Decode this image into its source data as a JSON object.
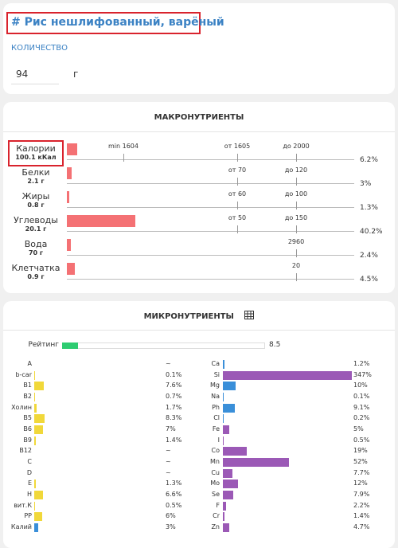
{
  "header": {
    "title": "# Рис нешлифованный, варёный"
  },
  "quantity": {
    "label": "КОЛИЧЕСТВО",
    "value": "94",
    "unit": "г"
  },
  "macro": {
    "title": "МАКРОНУТРИЕНТЫ",
    "color": "#f47174",
    "rows": [
      {
        "name": "Калории",
        "amount": "100.1 кКал",
        "value": 6.2,
        "value_label": "6.2%",
        "min": "min 1604",
        "from": "от 1605",
        "to": "до 2000"
      },
      {
        "name": "Белки",
        "amount": "2.1 г",
        "value": 3,
        "value_label": "3%",
        "from": "от 70",
        "to": "до 120"
      },
      {
        "name": "Жиры",
        "amount": "0.8 г",
        "value": 1.3,
        "value_label": "1.3%",
        "from": "от 60",
        "to": "до 100"
      },
      {
        "name": "Углеводы",
        "amount": "20.1 г",
        "value": 40.2,
        "value_label": "40.2%",
        "from": "от 50",
        "to": "до 150"
      },
      {
        "name": "Вода",
        "amount": "70 г",
        "value": 2.4,
        "value_label": "2.4%",
        "to": "2960"
      },
      {
        "name": "Клетчатка",
        "amount": "0.9 г",
        "value": 4.5,
        "value_label": "4.5%",
        "to": "20"
      }
    ]
  },
  "micro": {
    "title": "МИКРОНУТРИЕНТЫ",
    "rating": {
      "label": "Рейтинг",
      "value": 8.5,
      "color": "#2ecc71"
    },
    "left": [
      {
        "name": "A",
        "value": null,
        "value_label": "~",
        "color": "#f1d83a"
      },
      {
        "name": "b-car",
        "value": 0.1,
        "value_label": "0.1%",
        "color": "#f1d83a"
      },
      {
        "name": "B1",
        "value": 7.6,
        "value_label": "7.6%",
        "color": "#f1d83a"
      },
      {
        "name": "B2",
        "value": 0.7,
        "value_label": "0.7%",
        "color": "#f1d83a"
      },
      {
        "name": "Холин",
        "value": 1.7,
        "value_label": "1.7%",
        "color": "#f1d83a"
      },
      {
        "name": "B5",
        "value": 8.3,
        "value_label": "8.3%",
        "color": "#f1d83a"
      },
      {
        "name": "B6",
        "value": 7,
        "value_label": "7%",
        "color": "#f1d83a"
      },
      {
        "name": "B9",
        "value": 1.4,
        "value_label": "1.4%",
        "color": "#f1d83a"
      },
      {
        "name": "B12",
        "value": null,
        "value_label": "~",
        "color": "#f1d83a"
      },
      {
        "name": "C",
        "value": null,
        "value_label": "~",
        "color": "#f1d83a"
      },
      {
        "name": "D",
        "value": null,
        "value_label": "~",
        "color": "#f1d83a"
      },
      {
        "name": "E",
        "value": 1.3,
        "value_label": "1.3%",
        "color": "#f1d83a"
      },
      {
        "name": "H",
        "value": 6.6,
        "value_label": "6.6%",
        "color": "#f1d83a"
      },
      {
        "name": "вит.К",
        "value": 0.5,
        "value_label": "0.5%",
        "color": "#f1d83a"
      },
      {
        "name": "PP",
        "value": 6,
        "value_label": "6%",
        "color": "#f1d83a"
      },
      {
        "name": "Калий",
        "value": 3,
        "value_label": "3%",
        "color": "#3a8fd9"
      }
    ],
    "right": [
      {
        "name": "Ca",
        "value": 1.2,
        "value_label": "1.2%",
        "color": "#3a8fd9"
      },
      {
        "name": "Si",
        "value": 347,
        "value_label": "347%",
        "color": "#9b59b6"
      },
      {
        "name": "Mg",
        "value": 10,
        "value_label": "10%",
        "color": "#3a8fd9"
      },
      {
        "name": "Na",
        "value": 0.1,
        "value_label": "0.1%",
        "color": "#3a8fd9"
      },
      {
        "name": "Ph",
        "value": 9.1,
        "value_label": "9.1%",
        "color": "#3a8fd9"
      },
      {
        "name": "Cl",
        "value": 0.2,
        "value_label": "0.2%",
        "color": "#3a8fd9"
      },
      {
        "name": "Fe",
        "value": 5,
        "value_label": "5%",
        "color": "#9b59b6"
      },
      {
        "name": "I",
        "value": 0.5,
        "value_label": "0.5%",
        "color": "#9b59b6"
      },
      {
        "name": "Co",
        "value": 19,
        "value_label": "19%",
        "color": "#9b59b6"
      },
      {
        "name": "Mn",
        "value": 52,
        "value_label": "52%",
        "color": "#9b59b6"
      },
      {
        "name": "Cu",
        "value": 7.7,
        "value_label": "7.7%",
        "color": "#9b59b6"
      },
      {
        "name": "Mo",
        "value": 12,
        "value_label": "12%",
        "color": "#9b59b6"
      },
      {
        "name": "Se",
        "value": 7.9,
        "value_label": "7.9%",
        "color": "#9b59b6"
      },
      {
        "name": "F",
        "value": 2.2,
        "value_label": "2.2%",
        "color": "#9b59b6"
      },
      {
        "name": "Cr",
        "value": 1.4,
        "value_label": "1.4%",
        "color": "#9b59b6"
      },
      {
        "name": "Zn",
        "value": 4.7,
        "value_label": "4.7%",
        "color": "#9b59b6"
      }
    ]
  }
}
